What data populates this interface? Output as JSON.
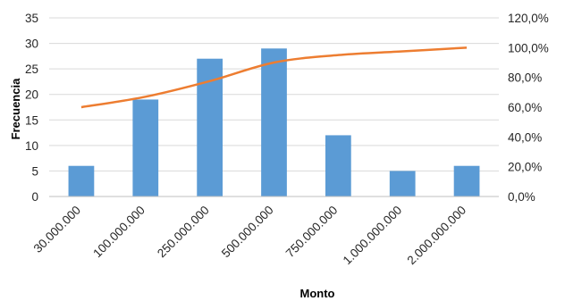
{
  "chart_data": {
    "type": "bar",
    "categories": [
      "30.000.000",
      "100.000.000",
      "250.000.000",
      "500.000.000",
      "750.000.000",
      "1.000.000.000",
      "2.000.000.000"
    ],
    "series": [
      {
        "type": "bar",
        "axis": "left",
        "values": [
          6,
          19,
          27,
          29,
          12,
          5,
          6
        ],
        "color": "#5B9BD5"
      },
      {
        "type": "line",
        "axis": "right",
        "values": [
          60,
          67,
          77.5,
          90,
          95,
          97.5,
          100
        ],
        "color": "#ED7D31"
      }
    ],
    "xlabel": "Monto",
    "ylabel": "Frecuencia",
    "ylim": [
      0,
      35
    ],
    "y_ticks": [
      "0",
      "5",
      "10",
      "15",
      "20",
      "25",
      "30",
      "35"
    ],
    "y2lim": [
      0,
      120
    ],
    "y2_ticks": [
      "0,0%",
      "20,0%",
      "40,0%",
      "60,0%",
      "80,0%",
      "100,0%",
      "120,0%"
    ],
    "grid": true,
    "legend": "none"
  }
}
